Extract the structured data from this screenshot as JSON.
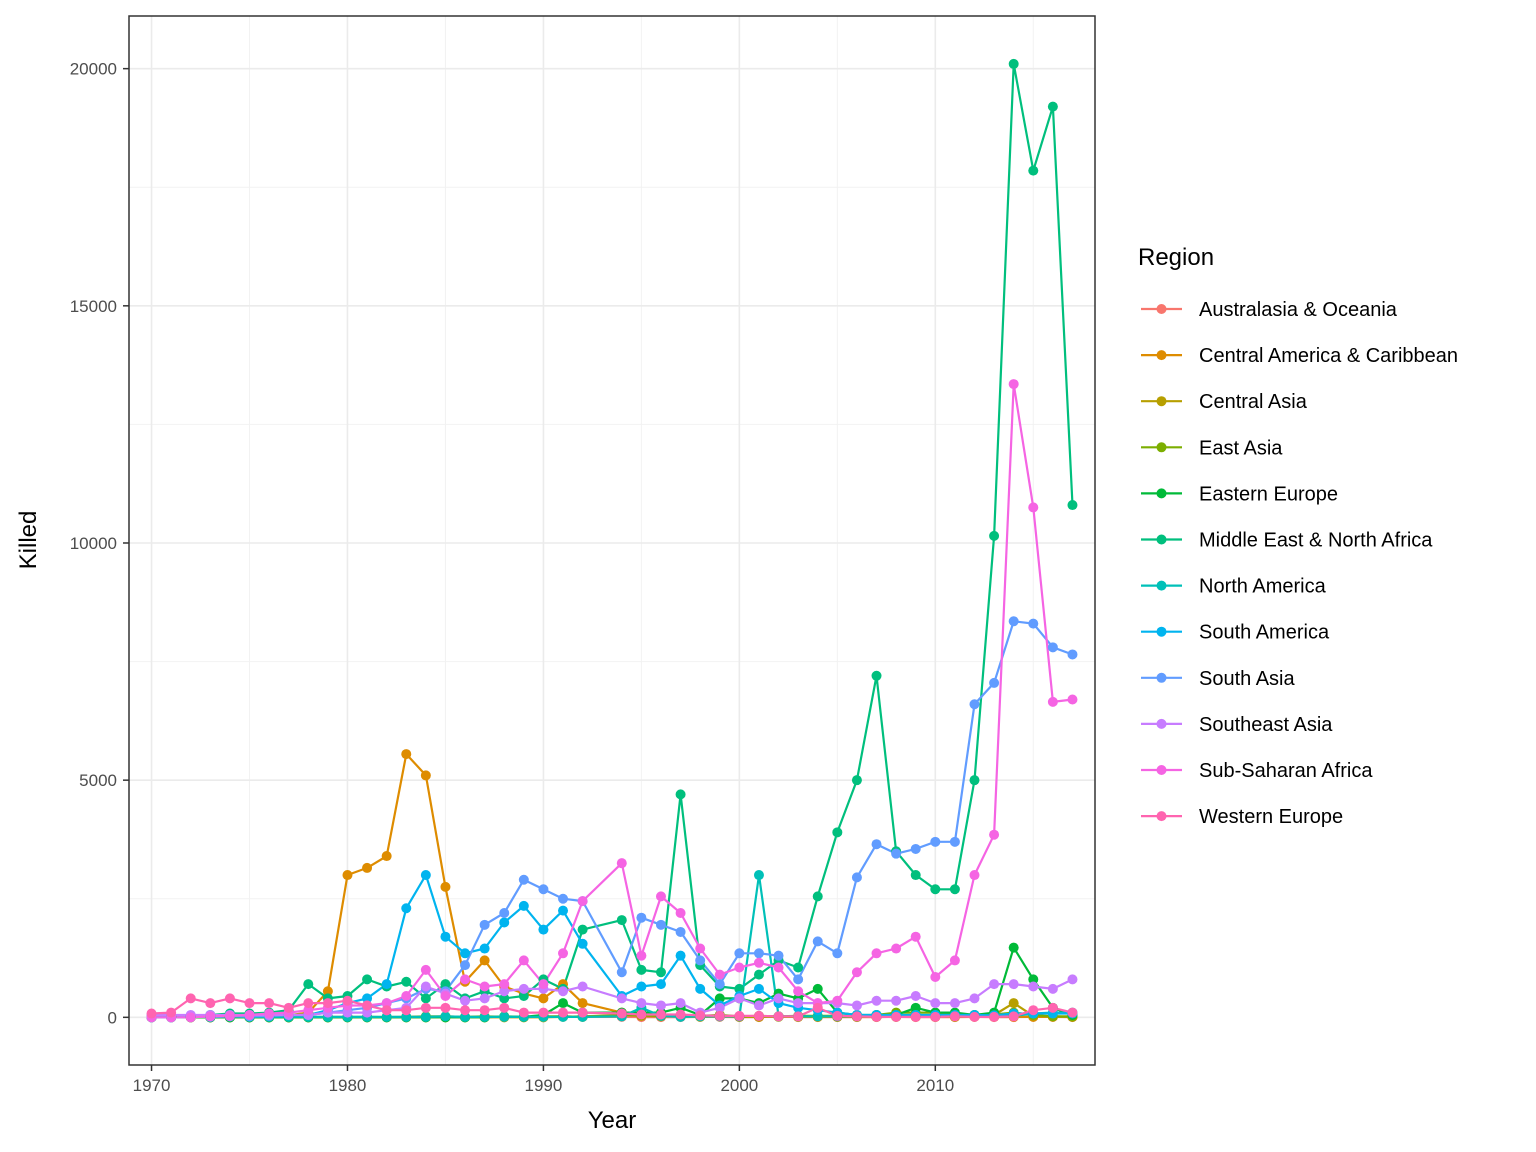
{
  "chart_data": {
    "type": "line",
    "title": "",
    "xlabel": "Year",
    "ylabel": "Killed",
    "xlim": [
      1968.85,
      2018.15
    ],
    "ylim": [
      -1005,
      21110
    ],
    "xticks": [
      1970,
      1980,
      1990,
      2000,
      2010
    ],
    "yticks": [
      0,
      5000,
      10000,
      15000,
      20000
    ],
    "grid": true,
    "markers": true,
    "legend_title": "Region",
    "legend_position": "right",
    "x": [
      1970,
      1971,
      1972,
      1973,
      1974,
      1975,
      1976,
      1977,
      1978,
      1979,
      1980,
      1981,
      1982,
      1983,
      1984,
      1985,
      1986,
      1987,
      1988,
      1989,
      1990,
      1991,
      1992,
      1994,
      1995,
      1996,
      1997,
      1998,
      1999,
      2000,
      2001,
      2002,
      2003,
      2004,
      2005,
      2006,
      2007,
      2008,
      2009,
      2010,
      2011,
      2012,
      2013,
      2014,
      2015,
      2016,
      2017
    ],
    "series": [
      {
        "name": "Australasia & Oceania",
        "color": "#F8766D",
        "values": [
          0,
          0,
          0,
          0,
          0,
          0,
          0,
          0,
          5,
          10,
          10,
          5,
          5,
          5,
          5,
          10,
          5,
          5,
          10,
          5,
          10,
          20,
          10,
          10,
          5,
          5,
          5,
          10,
          10,
          5,
          5,
          20,
          5,
          5,
          5,
          5,
          5,
          10,
          5,
          5,
          5,
          10,
          5,
          5,
          10,
          10,
          5
        ]
      },
      {
        "name": "Central America & Caribbean",
        "color": "#DE8C00",
        "values": [
          10,
          20,
          20,
          10,
          15,
          20,
          20,
          40,
          100,
          550,
          3000,
          3150,
          3400,
          5550,
          5100,
          2750,
          750,
          1200,
          650,
          500,
          400,
          700,
          300,
          100,
          50,
          50,
          40,
          30,
          20,
          20,
          10,
          20,
          10,
          10,
          10,
          10,
          10,
          10,
          10,
          10,
          10,
          10,
          10,
          10,
          10,
          10,
          10
        ]
      },
      {
        "name": "Central Asia",
        "color": "#B79F00",
        "values": [
          0,
          0,
          0,
          0,
          0,
          0,
          0,
          0,
          0,
          0,
          0,
          0,
          0,
          0,
          0,
          0,
          0,
          0,
          0,
          0,
          0,
          10,
          20,
          50,
          30,
          20,
          20,
          10,
          20,
          10,
          10,
          10,
          10,
          10,
          10,
          10,
          10,
          10,
          20,
          10,
          10,
          20,
          50,
          300,
          30,
          20,
          10
        ]
      },
      {
        "name": "East Asia",
        "color": "#7CAE00",
        "values": [
          0,
          0,
          0,
          0,
          0,
          0,
          0,
          0,
          0,
          0,
          5,
          10,
          5,
          10,
          20,
          20,
          10,
          20,
          10,
          10,
          20,
          20,
          10,
          50,
          50,
          30,
          30,
          30,
          50,
          20,
          30,
          20,
          30,
          30,
          30,
          30,
          50,
          100,
          100,
          100,
          50,
          50,
          60,
          100,
          50,
          20,
          20
        ]
      },
      {
        "name": "Eastern Europe",
        "color": "#00BA38",
        "values": [
          0,
          0,
          0,
          0,
          0,
          0,
          0,
          0,
          0,
          0,
          0,
          0,
          0,
          0,
          0,
          0,
          0,
          0,
          20,
          10,
          50,
          300,
          100,
          100,
          100,
          100,
          200,
          50,
          400,
          400,
          300,
          500,
          400,
          600,
          100,
          50,
          50,
          50,
          200,
          100,
          100,
          50,
          100,
          1470,
          800,
          200,
          50
        ]
      },
      {
        "name": "Middle East & North Africa",
        "color": "#00BF7D",
        "values": [
          20,
          30,
          30,
          50,
          80,
          80,
          100,
          150,
          700,
          400,
          450,
          800,
          650,
          750,
          400,
          700,
          400,
          550,
          400,
          450,
          800,
          600,
          1850,
          2050,
          1000,
          950,
          4700,
          1100,
          650,
          600,
          900,
          1200,
          1050,
          2550,
          3900,
          5000,
          7200,
          3500,
          3000,
          2700,
          2700,
          5000,
          10150,
          20100,
          17850,
          19200,
          10800
        ]
      },
      {
        "name": "North America",
        "color": "#00C0B8",
        "values": [
          20,
          20,
          20,
          20,
          20,
          10,
          10,
          10,
          10,
          10,
          10,
          10,
          10,
          10,
          10,
          20,
          10,
          10,
          10,
          10,
          10,
          10,
          10,
          20,
          200,
          30,
          10,
          20,
          20,
          20,
          3000,
          20,
          20,
          20,
          20,
          20,
          20,
          20,
          30,
          30,
          30,
          30,
          30,
          30,
          80,
          100,
          100
        ]
      },
      {
        "name": "South America",
        "color": "#00B4EF",
        "values": [
          0,
          0,
          10,
          10,
          20,
          30,
          40,
          50,
          50,
          150,
          300,
          400,
          700,
          2300,
          3000,
          1700,
          1350,
          1450,
          2000,
          2350,
          1850,
          2250,
          1550,
          450,
          650,
          700,
          1300,
          600,
          250,
          450,
          600,
          300,
          200,
          150,
          100,
          50,
          50,
          50,
          50,
          50,
          50,
          50,
          40,
          80,
          80,
          80,
          80
        ]
      },
      {
        "name": "South Asia",
        "color": "#619CFF",
        "values": [
          0,
          0,
          10,
          10,
          20,
          20,
          30,
          50,
          50,
          100,
          150,
          200,
          300,
          400,
          600,
          550,
          1100,
          1950,
          2200,
          2900,
          2700,
          2500,
          2450,
          950,
          2100,
          1950,
          1800,
          1200,
          700,
          1350,
          1350,
          1300,
          800,
          1600,
          1350,
          2950,
          3650,
          3450,
          3550,
          3700,
          3700,
          6600,
          7050,
          8350,
          8300,
          7800,
          7650
        ]
      },
      {
        "name": "Southeast Asia",
        "color": "#C77CFF",
        "values": [
          50,
          50,
          50,
          50,
          50,
          50,
          50,
          50,
          50,
          100,
          100,
          100,
          150,
          200,
          650,
          500,
          350,
          400,
          550,
          600,
          600,
          550,
          650,
          400,
          300,
          250,
          300,
          100,
          200,
          400,
          250,
          400,
          300,
          300,
          300,
          250,
          350,
          350,
          450,
          300,
          300,
          400,
          700,
          700,
          650,
          600,
          800
        ]
      },
      {
        "name": "Sub-Saharan Africa",
        "color": "#F564E3",
        "values": [
          0,
          0,
          0,
          20,
          30,
          50,
          80,
          100,
          150,
          200,
          250,
          250,
          300,
          450,
          1000,
          450,
          800,
          650,
          700,
          1200,
          700,
          1350,
          2450,
          3250,
          1300,
          2550,
          2200,
          1450,
          900,
          1050,
          1150,
          1050,
          550,
          300,
          350,
          950,
          1350,
          1450,
          1700,
          850,
          1200,
          3000,
          3850,
          13350,
          10750,
          6650,
          6700
        ]
      },
      {
        "name": "Western Europe",
        "color": "#FF64B0",
        "values": [
          80,
          100,
          400,
          300,
          400,
          300,
          300,
          200,
          300,
          300,
          350,
          250,
          150,
          150,
          200,
          200,
          150,
          150,
          200,
          100,
          100,
          100,
          100,
          80,
          60,
          60,
          60,
          40,
          30,
          30,
          30,
          20,
          20,
          200,
          30,
          20,
          10,
          10,
          10,
          10,
          20,
          10,
          10,
          20,
          150,
          200,
          100
        ]
      }
    ]
  }
}
